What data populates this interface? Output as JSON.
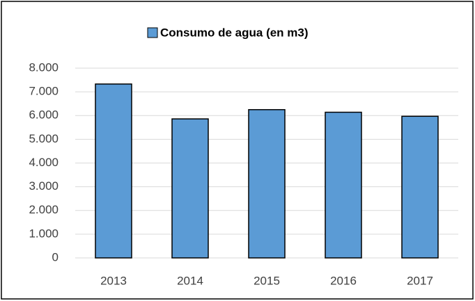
{
  "chart_data": {
    "type": "bar",
    "categories": [
      "2013",
      "2014",
      "2015",
      "2016",
      "2017"
    ],
    "series": [
      {
        "name": "Consumo de agua (en m3)",
        "color": "#5b9bd5",
        "values": [
          7330,
          5860,
          6250,
          6140,
          5970
        ]
      }
    ],
    "ylim": [
      0,
      8000
    ],
    "yticks": [
      0,
      {
        "value": 1000,
        "label": "1.000"
      },
      {
        "value": 2000,
        "label": "2.000"
      },
      {
        "value": 3000,
        "label": "3.000"
      },
      {
        "value": 4000,
        "label": "4.000"
      },
      {
        "value": 5000,
        "label": "5.000"
      },
      {
        "value": 6000,
        "label": "6.000"
      },
      {
        "value": 7000,
        "label": "7.000"
      },
      {
        "value": 8000,
        "label": "8.000"
      }
    ],
    "grid": true,
    "legend": "top"
  }
}
